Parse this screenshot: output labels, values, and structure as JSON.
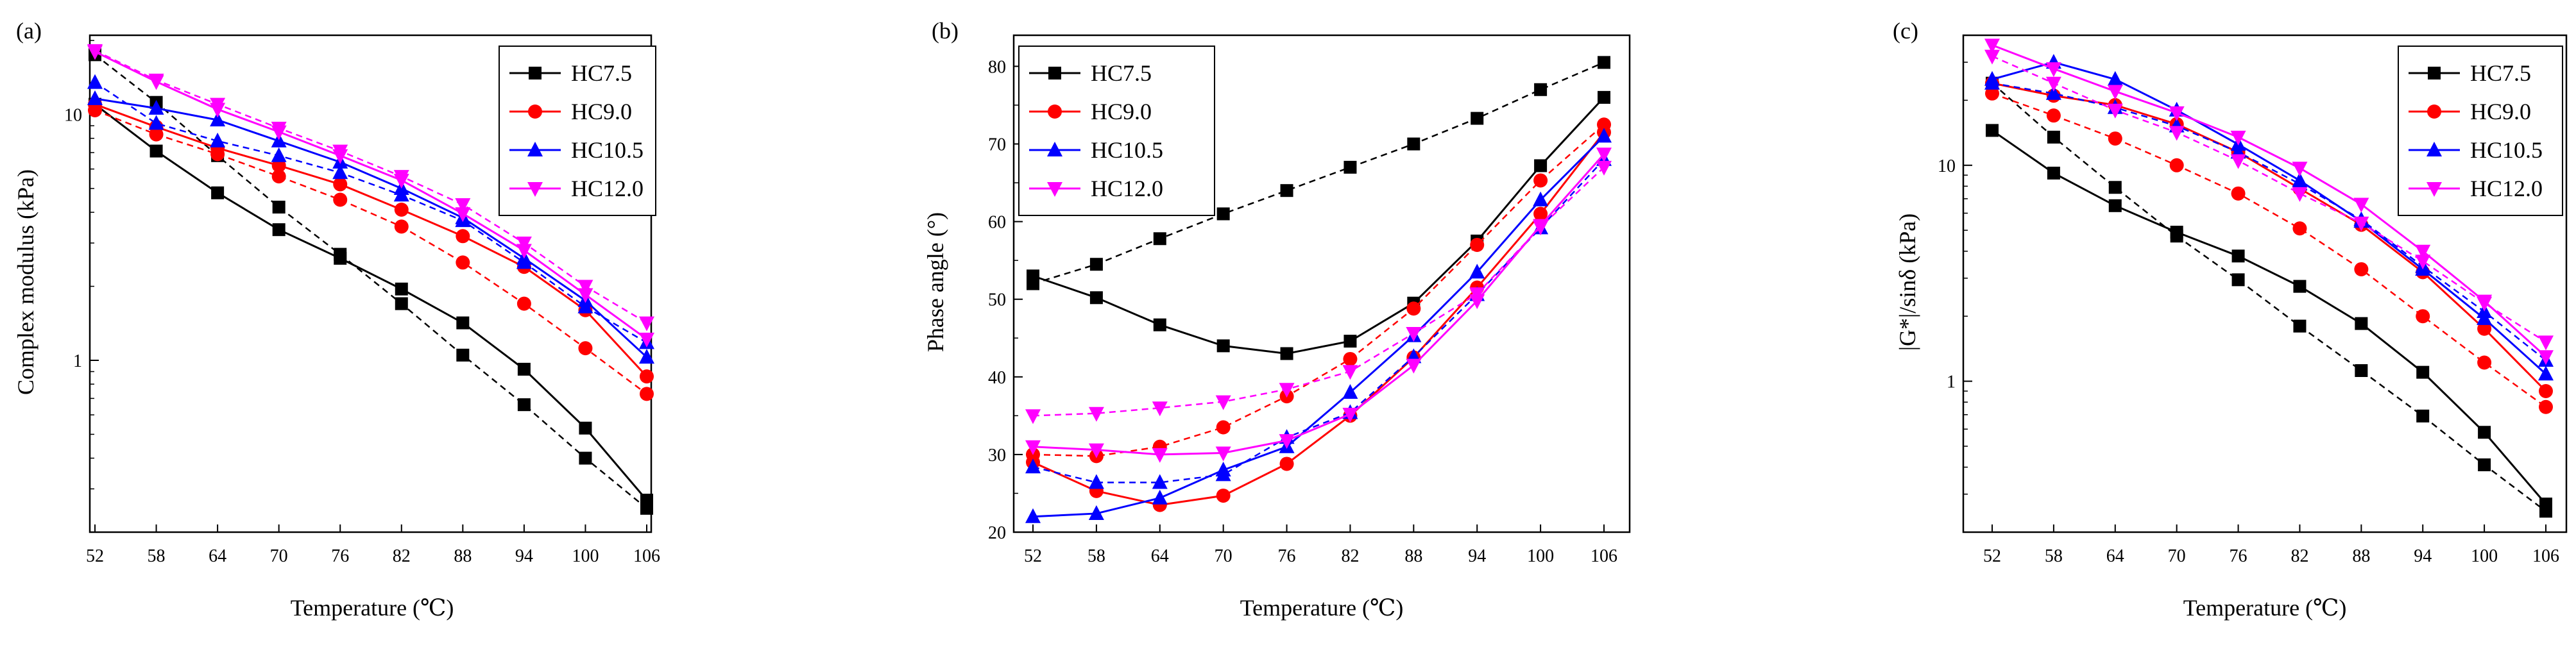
{
  "colors": {
    "HC7.5": "#000000",
    "HC9.0": "#ff0000",
    "HC10.5": "#0000ff",
    "HC12.0": "#ff00ff"
  },
  "chart_data": [
    {
      "type": "line",
      "panel_label": "(a)",
      "yscale": "log",
      "xlabel": "Temperature (℃)",
      "ylabel": "Complex modulus (kPa)",
      "categories": [
        52,
        58,
        64,
        70,
        76,
        82,
        88,
        94,
        100,
        106
      ],
      "yticks": [
        {
          "v": 1,
          "label": "1"
        },
        {
          "v": 10,
          "label": "10"
        }
      ],
      "ylim": [
        0.2,
        21
      ],
      "legend_position": "top-right",
      "series": [
        {
          "name": "HC7.5",
          "marker": "square",
          "solid": [
            11.0,
            7.1,
            4.8,
            3.4,
            2.6,
            1.95,
            1.42,
            0.92,
            0.53,
            0.27
          ],
          "dashed": [
            17.5,
            11.2,
            6.8,
            4.2,
            2.7,
            1.7,
            1.05,
            0.66,
            0.4,
            0.25
          ]
        },
        {
          "name": "HC9.0",
          "marker": "circle",
          "solid": [
            11.0,
            8.9,
            7.3,
            6.2,
            5.2,
            4.1,
            3.2,
            2.4,
            1.6,
            0.86
          ],
          "dashed": [
            10.4,
            8.3,
            6.9,
            5.6,
            4.5,
            3.5,
            2.5,
            1.7,
            1.12,
            0.73
          ]
        },
        {
          "name": "HC10.5",
          "marker": "triangle-up",
          "solid": [
            11.6,
            10.6,
            9.5,
            7.8,
            6.4,
            5.0,
            3.8,
            2.6,
            1.75,
            1.03
          ],
          "dashed": [
            13.5,
            9.2,
            7.8,
            6.8,
            5.8,
            4.7,
            3.7,
            2.5,
            1.65,
            1.18
          ]
        },
        {
          "name": "HC12.0",
          "marker": "triangle-down",
          "solid": [
            18.0,
            13.6,
            10.5,
            8.5,
            6.8,
            5.4,
            3.95,
            2.8,
            1.85,
            1.22
          ],
          "dashed": [
            18.2,
            13.8,
            11.0,
            8.8,
            7.1,
            5.6,
            4.3,
            3.0,
            2.0,
            1.42
          ]
        }
      ]
    },
    {
      "type": "line",
      "panel_label": "(b)",
      "yscale": "linear",
      "xlabel": "Temperature (℃)",
      "ylabel": "Phase angle (°)",
      "categories": [
        52,
        58,
        64,
        70,
        76,
        82,
        88,
        94,
        100,
        106
      ],
      "yticks": [
        {
          "v": 20,
          "label": "20"
        },
        {
          "v": 30,
          "label": "30"
        },
        {
          "v": 40,
          "label": "40"
        },
        {
          "v": 50,
          "label": "50"
        },
        {
          "v": 60,
          "label": "60"
        },
        {
          "v": 70,
          "label": "70"
        },
        {
          "v": 80,
          "label": "80"
        }
      ],
      "ylim": [
        20,
        84
      ],
      "legend_position": "top-left",
      "series": [
        {
          "name": "HC7.5",
          "marker": "square",
          "solid": [
            53.0,
            50.2,
            46.7,
            44.0,
            43.0,
            44.6,
            49.5,
            57.5,
            67.2,
            76.0
          ],
          "dashed": [
            52.0,
            54.5,
            57.8,
            61.0,
            64.0,
            67.0,
            70.0,
            73.3,
            77.0,
            80.5
          ]
        },
        {
          "name": "HC9.0",
          "marker": "circle",
          "solid": [
            29.0,
            25.3,
            23.5,
            24.7,
            28.8,
            35.0,
            42.5,
            51.5,
            61.0,
            71.5
          ],
          "dashed": [
            30.0,
            29.8,
            31.0,
            33.5,
            37.5,
            42.3,
            48.8,
            57.0,
            65.3,
            72.5
          ]
        },
        {
          "name": "HC10.5",
          "marker": "triangle-up",
          "solid": [
            22.0,
            22.4,
            24.4,
            28.0,
            31.0,
            38.0,
            45.3,
            53.5,
            62.8,
            71.0
          ],
          "dashed": [
            28.4,
            26.4,
            26.4,
            27.4,
            32.2,
            35.4,
            42.6,
            50.6,
            59.2,
            68.0
          ]
        },
        {
          "name": "HC12.0",
          "marker": "triangle-down",
          "solid": [
            31.0,
            30.6,
            30.0,
            30.2,
            31.8,
            35.2,
            41.5,
            49.8,
            59.5,
            68.7
          ],
          "dashed": [
            35.0,
            35.3,
            36.0,
            36.8,
            38.4,
            40.7,
            45.6,
            50.7,
            59.3,
            67.0
          ]
        }
      ]
    },
    {
      "type": "line",
      "panel_label": "(c)",
      "yscale": "log",
      "xlabel": "Temperature (℃)",
      "ylabel": "|G*|/sinδ (kPa)",
      "categories": [
        52,
        58,
        64,
        70,
        76,
        82,
        88,
        94,
        100,
        106
      ],
      "yticks": [
        {
          "v": 1,
          "label": "1"
        },
        {
          "v": 10,
          "label": "10"
        }
      ],
      "ylim": [
        0.2,
        40
      ],
      "legend_position": "top-right",
      "series": [
        {
          "name": "HC7.5",
          "marker": "square",
          "solid": [
            14.5,
            9.2,
            6.5,
            4.9,
            3.8,
            2.75,
            1.85,
            1.1,
            0.58,
            0.27
          ],
          "dashed": [
            24.0,
            13.5,
            7.9,
            4.7,
            2.95,
            1.8,
            1.12,
            0.69,
            0.41,
            0.25
          ]
        },
        {
          "name": "HC9.0",
          "marker": "circle",
          "solid": [
            24.0,
            21.0,
            19.0,
            15.5,
            11.5,
            7.8,
            5.3,
            3.2,
            1.75,
            0.9
          ],
          "dashed": [
            21.5,
            17.0,
            13.3,
            10.0,
            7.4,
            5.1,
            3.3,
            2.0,
            1.22,
            0.76
          ]
        },
        {
          "name": "HC10.5",
          "marker": "triangle-up",
          "solid": [
            25.0,
            30.0,
            25.0,
            18.0,
            12.5,
            8.5,
            5.5,
            3.3,
            1.95,
            1.08
          ],
          "dashed": [
            24.0,
            21.5,
            18.5,
            15.2,
            11.5,
            8.2,
            5.6,
            3.4,
            2.1,
            1.25
          ]
        },
        {
          "name": "HC12.0",
          "marker": "triangle-down",
          "solid": [
            36.0,
            28.0,
            22.0,
            17.5,
            13.5,
            9.7,
            6.6,
            4.0,
            2.35,
            1.3
          ],
          "dashed": [
            32.0,
            24.0,
            18.0,
            14.2,
            10.5,
            7.4,
            5.4,
            3.6,
            2.3,
            1.52
          ]
        }
      ]
    }
  ]
}
